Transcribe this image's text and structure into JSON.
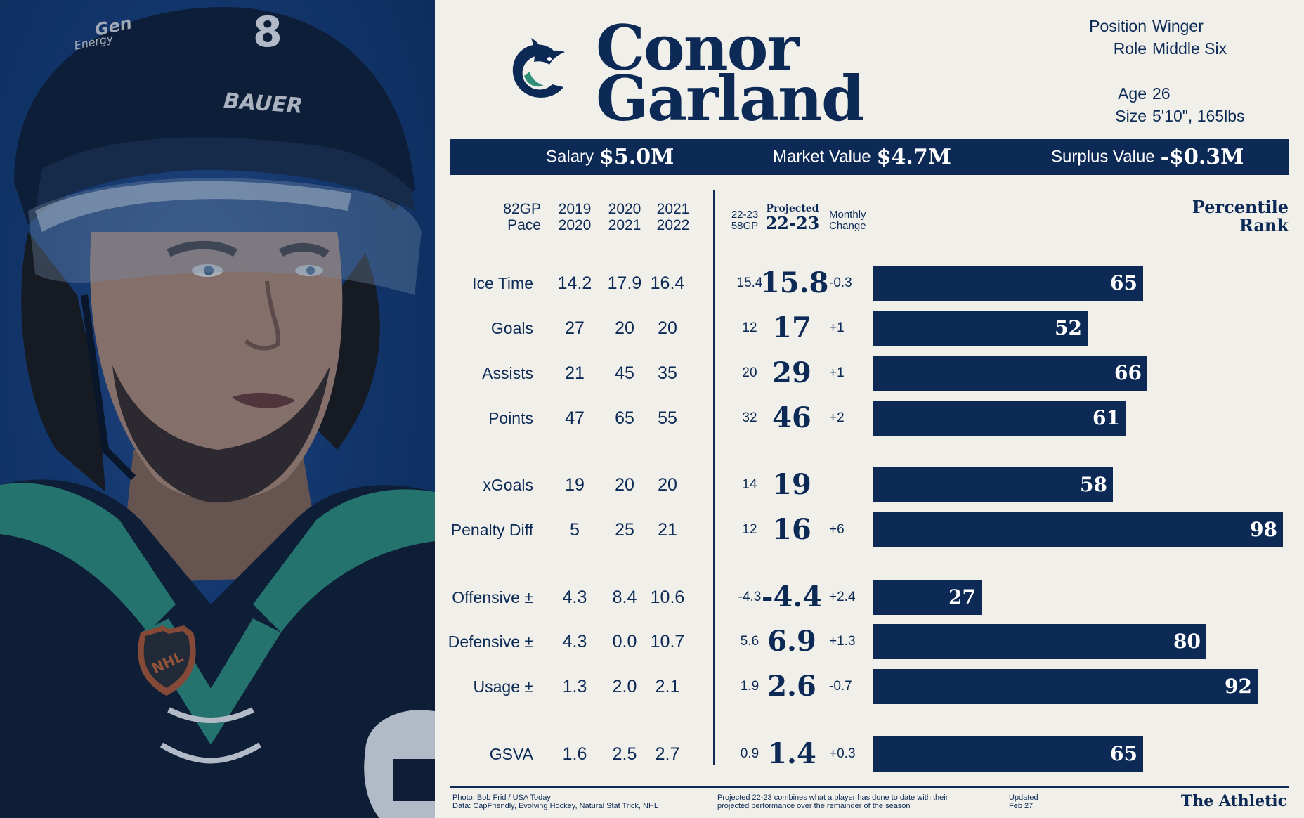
{
  "player": {
    "first_name": "Conor",
    "last_name": "Garland",
    "position_label": "Position",
    "position": "Winger",
    "role_label": "Role",
    "role": "Middle Six",
    "age_label": "Age",
    "age": "26",
    "size_label": "Size",
    "size": "5'10\", 165lbs"
  },
  "contract": {
    "salary_label": "Salary",
    "salary": "$5.0M",
    "market_label": "Market Value",
    "market": "$4.7M",
    "surplus_label": "Surplus Value",
    "surplus": "-$0.3M"
  },
  "headers": {
    "pace": [
      "82GP",
      "Pace"
    ],
    "s1": [
      "2019",
      "2020"
    ],
    "s2": [
      "2020",
      "2021"
    ],
    "s3": [
      "2021",
      "2022"
    ],
    "current": [
      "22-23",
      "58GP"
    ],
    "projected_small": "Projected",
    "projected": "22-23",
    "monthly": [
      "Monthly",
      "Change"
    ],
    "percentile": [
      "Percentile",
      "Rank"
    ]
  },
  "chart_data": {
    "type": "bar",
    "title": "Percentile Rank",
    "xlim": [
      0,
      100
    ],
    "categories": [
      "Ice Time",
      "Goals",
      "Assists",
      "Points",
      "xGoals",
      "Penalty Diff",
      "Offensive ±",
      "Defensive ±",
      "Usage ±",
      "GSVA"
    ],
    "values": [
      65,
      52,
      66,
      61,
      58,
      98,
      27,
      80,
      92,
      65
    ],
    "rows": [
      {
        "label": "Ice Time",
        "s1": "14.2",
        "s2": "17.9",
        "s3": "16.4",
        "current": "15.4",
        "projected": "15.8",
        "change": "-0.3",
        "percentile": 65
      },
      {
        "label": "Goals",
        "s1": "27",
        "s2": "20",
        "s3": "20",
        "current": "12",
        "projected": "17",
        "change": "+1",
        "percentile": 52
      },
      {
        "label": "Assists",
        "s1": "21",
        "s2": "45",
        "s3": "35",
        "current": "20",
        "projected": "29",
        "change": "+1",
        "percentile": 66
      },
      {
        "label": "Points",
        "s1": "47",
        "s2": "65",
        "s3": "55",
        "current": "32",
        "projected": "46",
        "change": "+2",
        "percentile": 61
      },
      {
        "label": "xGoals",
        "s1": "19",
        "s2": "20",
        "s3": "20",
        "current": "14",
        "projected": "19",
        "change": "",
        "percentile": 58
      },
      {
        "label": "Penalty Diff",
        "s1": "5",
        "s2": "25",
        "s3": "21",
        "current": "12",
        "projected": "16",
        "change": "+6",
        "percentile": 98
      },
      {
        "label": "Offensive ±",
        "s1": "4.3",
        "s2": "8.4",
        "s3": "10.6",
        "current": "-4.3",
        "projected": "-4.4",
        "change": "+2.4",
        "percentile": 27
      },
      {
        "label": "Defensive ±",
        "s1": "4.3",
        "s2": "0.0",
        "s3": "10.7",
        "current": "5.6",
        "projected": "6.9",
        "change": "+1.3",
        "percentile": 80
      },
      {
        "label": "Usage ±",
        "s1": "1.3",
        "s2": "2.0",
        "s3": "2.1",
        "current": "1.9",
        "projected": "2.6",
        "change": "-0.7",
        "percentile": 92
      },
      {
        "label": "GSVA",
        "s1": "1.6",
        "s2": "2.5",
        "s3": "2.7",
        "current": "0.9",
        "projected": "1.4",
        "change": "+0.3",
        "percentile": 65
      }
    ]
  },
  "footer": {
    "credits": [
      "Photo: Bob Frid / USA Today",
      "Data: CapFriendly, Evolving Hockey, Natural Stat Trick, NHL"
    ],
    "note": [
      "Projected 22-23 combines what a player has done to date with their",
      "projected performance over the remainder of the season"
    ],
    "updated": [
      "Updated",
      "Feb 27"
    ],
    "brand": "The Athletic"
  },
  "photo": {
    "helmet_number": "8",
    "helmet_brand": "BAUER",
    "jersey_badge": "NHL",
    "sticker_text": [
      "Gen",
      "Energy"
    ]
  },
  "colors": {
    "navy": "#0c2a55",
    "background": "#f0efea",
    "jersey_green": "#2f8f78"
  }
}
